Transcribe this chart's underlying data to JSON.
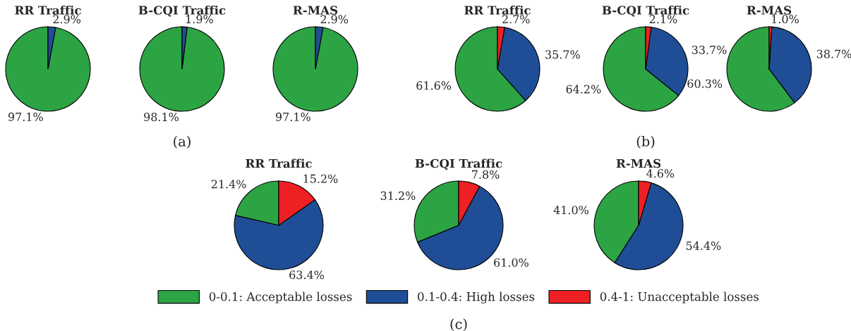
{
  "chart_data": [
    {
      "type": "pie",
      "title": "RR Traffic",
      "values": [
        97.1,
        2.9
      ],
      "value_labels": [
        "97.1%",
        "2.9%"
      ],
      "colors": [
        "#2ca444",
        "#1f4e96"
      ]
    },
    {
      "type": "pie",
      "title": "B-CQI Traffic",
      "values": [
        98.1,
        1.9
      ],
      "value_labels": [
        "98.1%",
        "1.9%"
      ],
      "colors": [
        "#2ca444",
        "#1f4e96"
      ],
      "annotations": [
        "(a)"
      ]
    },
    {
      "type": "pie",
      "title": "R-MAS",
      "values": [
        97.1,
        2.9
      ],
      "value_labels": [
        "97.1%",
        "2.9%"
      ],
      "colors": [
        "#2ca444",
        "#1f4e96"
      ]
    },
    {
      "type": "pie",
      "title": "RR Traffic",
      "values": [
        61.6,
        35.7,
        2.7
      ],
      "value_labels": [
        "61.6%",
        "35.7%",
        "2.7%"
      ],
      "colors": [
        "#2ca444",
        "#1f4e96",
        "#ee2024"
      ]
    },
    {
      "type": "pie",
      "title": "B-CQI Traffic",
      "values": [
        64.2,
        33.7,
        2.1
      ],
      "value_labels": [
        "64.2%",
        "33.7%",
        "2.1%"
      ],
      "colors": [
        "#2ca444",
        "#1f4e96",
        "#ee2024"
      ],
      "annotations": [
        "(b)"
      ]
    },
    {
      "type": "pie",
      "title": "R-MAS",
      "values": [
        60.3,
        38.7,
        1.0
      ],
      "value_labels": [
        "60.3%",
        "38.7%",
        "1.0%"
      ],
      "colors": [
        "#2ca444",
        "#1f4e96",
        "#ee2024"
      ]
    },
    {
      "type": "pie",
      "title": "RR Traffic",
      "values": [
        21.4,
        63.4,
        15.2
      ],
      "value_labels": [
        "21.4%",
        "63.4%",
        "15.2%"
      ],
      "colors": [
        "#2ca444",
        "#1f4e96",
        "#ee2024"
      ]
    },
    {
      "type": "pie",
      "title": "B-CQI Traffic",
      "categories": [
        "0-0.1: Acceptable losses",
        "0.1-0.4: High losses",
        "0.4-1: Unacceptable losses"
      ],
      "values": [
        31.2,
        61.0,
        7.8
      ],
      "value_labels": [
        "31.2%",
        "61.0%",
        "7.8%"
      ],
      "colors": [
        "#2ca444",
        "#1f4e96",
        "#ee2024"
      ],
      "legend": "bottom",
      "annotations": [
        "(c)"
      ]
    },
    {
      "type": "pie",
      "title": "R-MAS",
      "values": [
        41.0,
        54.4,
        4.6
      ],
      "value_labels": [
        "41.0%",
        "54.4%",
        "4.6%"
      ],
      "colors": [
        "#2ca444",
        "#1f4e96",
        "#ee2024"
      ]
    }
  ]
}
